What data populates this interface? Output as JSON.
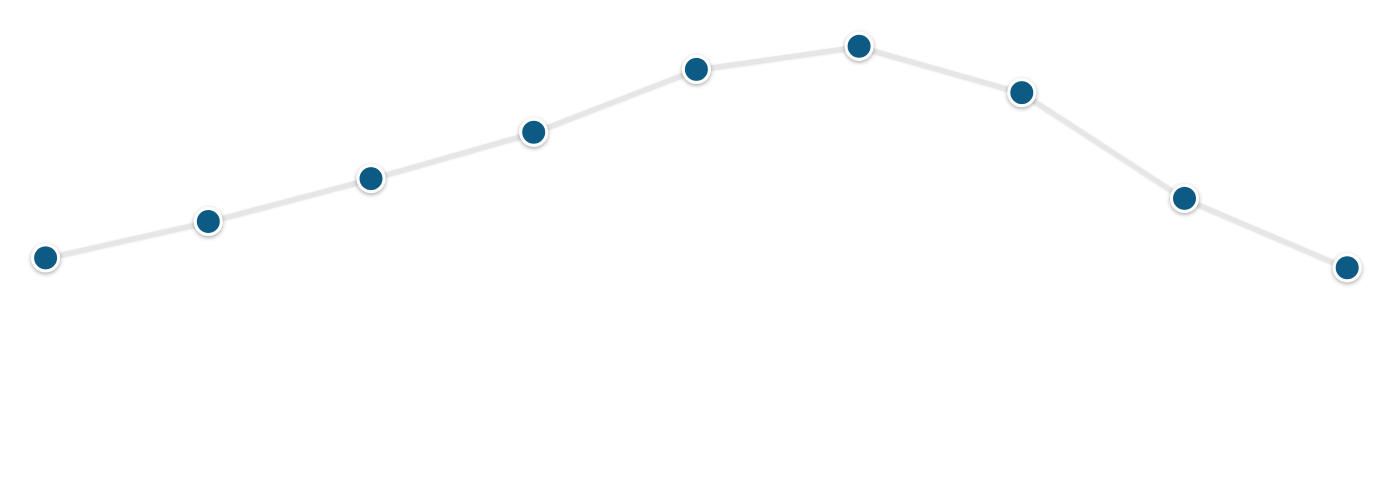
{
  "chart_data": {
    "type": "line",
    "title": "",
    "xlabel": "",
    "ylabel": "",
    "x": [
      1,
      2,
      3,
      4,
      5,
      6,
      7,
      8,
      9
    ],
    "series": [
      {
        "values": [
          7.2,
          8.3,
          9.6,
          11.0,
          12.9,
          13.6,
          12.2,
          9.0,
          6.9
        ],
        "line_color": "#e6e6e6",
        "marker_fill": "#0f5a85",
        "marker_stroke": "#ffffff"
      }
    ],
    "xlim": [
      0.72,
      9.3
    ],
    "ylim": [
      0,
      15
    ],
    "grid": false,
    "legend": "none"
  }
}
